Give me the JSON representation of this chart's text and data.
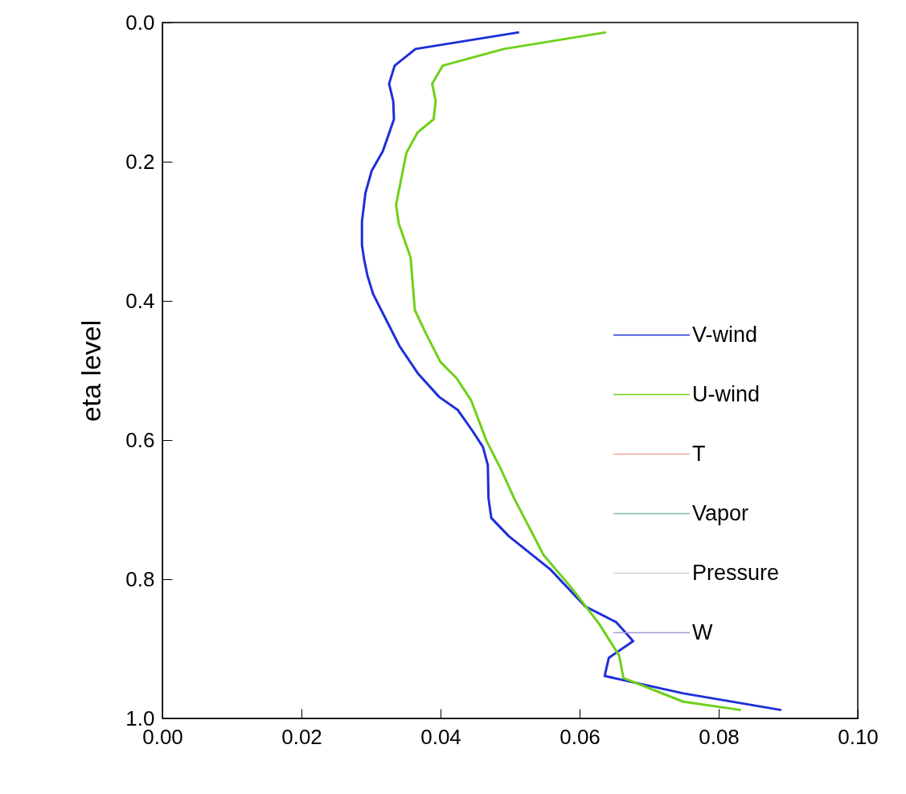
{
  "chart_data": {
    "type": "line",
    "ylabel": "eta level",
    "xlim": [
      0,
      0.1
    ],
    "xticks": [
      {
        "value": 0,
        "label": "0.00"
      },
      0.02,
      0.04,
      0.06,
      0.08,
      {
        "value": 0.1,
        "label": "0.10"
      }
    ],
    "ylim": [
      1,
      0
    ],
    "yticks": [
      {
        "value": 0,
        "label": "0.0"
      },
      0.2,
      0.4,
      0.6,
      0.8,
      {
        "value": 1,
        "label": "1.0"
      }
    ],
    "grid": false,
    "legend": "right",
    "marker": "none",
    "line_style": "solid",
    "series": [
      {
        "name": "V-wind",
        "color": "#1f2fd8",
        "x": [
          0.0513,
          0.0364,
          0.0334,
          0.0326,
          0.0332,
          0.0333,
          0.0317,
          0.0301,
          0.0292,
          0.0287,
          0.0287,
          0.029,
          0.0295,
          0.0303,
          0.0341,
          0.0368,
          0.0398,
          0.0425,
          0.0446,
          0.0461,
          0.0468,
          0.0469,
          0.0473,
          0.0498,
          0.0558,
          0.0608,
          0.0653,
          0.0677,
          0.0642,
          0.0636,
          0.0749,
          0.089
        ],
        "values": [
          0.014,
          0.038,
          0.062,
          0.088,
          0.113,
          0.139,
          0.185,
          0.213,
          0.245,
          0.286,
          0.32,
          0.34,
          0.364,
          0.39,
          0.465,
          0.505,
          0.538,
          0.557,
          0.587,
          0.61,
          0.636,
          0.684,
          0.712,
          0.738,
          0.786,
          0.839,
          0.862,
          0.889,
          0.913,
          0.939,
          0.964,
          0.988
        ]
      },
      {
        "name": "U-wind",
        "color": "#6fd01a",
        "x": [
          0.0638,
          0.0491,
          0.0403,
          0.0388,
          0.0393,
          0.039,
          0.0367,
          0.0351,
          0.0336,
          0.034,
          0.0357,
          0.0363,
          0.0379,
          0.04,
          0.0423,
          0.0444,
          0.0466,
          0.0486,
          0.0506,
          0.0548,
          0.0588,
          0.0628,
          0.0657,
          0.0663,
          0.0749,
          0.0832
        ],
        "values": [
          0.014,
          0.038,
          0.062,
          0.088,
          0.113,
          0.139,
          0.158,
          0.187,
          0.262,
          0.289,
          0.338,
          0.413,
          0.447,
          0.488,
          0.511,
          0.543,
          0.601,
          0.64,
          0.684,
          0.765,
          0.812,
          0.864,
          0.91,
          0.942,
          0.976,
          0.988
        ]
      },
      {
        "name": "T",
        "color": "#f4a3a3"
      },
      {
        "name": "Vapor",
        "color": "#7fb8a4"
      },
      {
        "name": "Pressure",
        "color": "#cfcfcf"
      },
      {
        "name": "W",
        "color": "#a596d8"
      }
    ]
  }
}
